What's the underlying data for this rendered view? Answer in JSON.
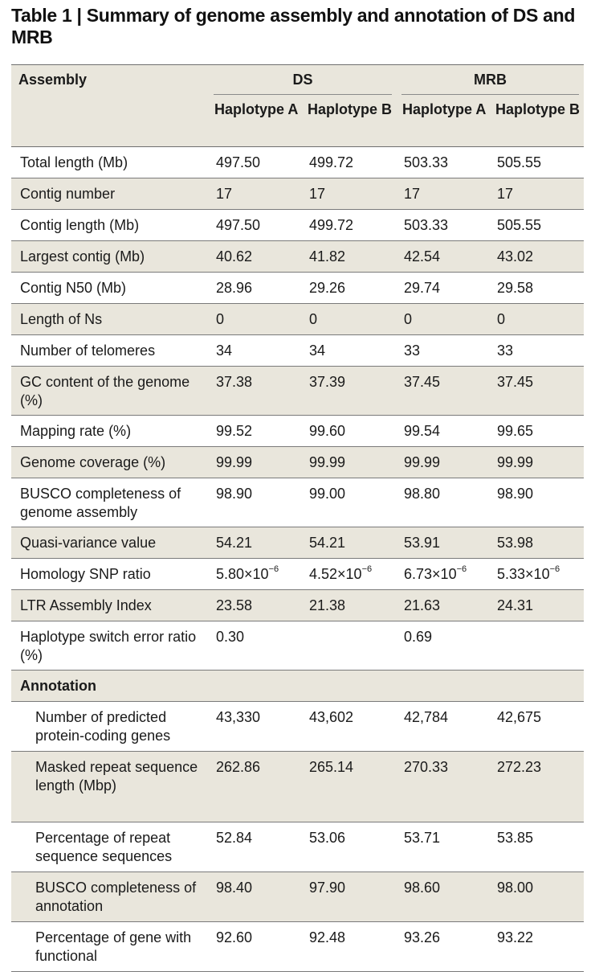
{
  "title": "Table 1 | Summary of genome assembly and annotation of DS and MRB",
  "header": {
    "assembly_label": "Assembly",
    "groups": [
      "DS",
      "MRB"
    ],
    "subheaders": [
      "Haplotype A",
      "Haplotype B",
      "Haplotype A",
      "Haplotype B"
    ]
  },
  "rows": [
    {
      "label": "Total length (Mb)",
      "values": [
        "497.50",
        "499.72",
        "503.33",
        "505.55"
      ]
    },
    {
      "label": "Contig number",
      "values": [
        "17",
        "17",
        "17",
        "17"
      ]
    },
    {
      "label": "Contig length (Mb)",
      "values": [
        "497.50",
        "499.72",
        "503.33",
        "505.55"
      ]
    },
    {
      "label": "Largest contig (Mb)",
      "values": [
        "40.62",
        "41.82",
        "42.54",
        "43.02"
      ]
    },
    {
      "label": "Contig N50 (Mb)",
      "values": [
        "28.96",
        "29.26",
        "29.74",
        "29.58"
      ]
    },
    {
      "label": "Length of Ns",
      "values": [
        "0",
        "0",
        "0",
        "0"
      ]
    },
    {
      "label": "Number of telomeres",
      "values": [
        "34",
        "34",
        "33",
        "33"
      ]
    },
    {
      "label": "GC content of the genome (%)",
      "values": [
        "37.38",
        "37.39",
        "37.45",
        "37.45"
      ]
    },
    {
      "label": "Mapping rate (%)",
      "values": [
        "99.52",
        "99.60",
        "99.54",
        "99.65"
      ]
    },
    {
      "label": "Genome coverage (%)",
      "values": [
        "99.99",
        "99.99",
        "99.99",
        "99.99"
      ]
    },
    {
      "label": "BUSCO completeness of genome assembly",
      "values": [
        "98.90",
        "99.00",
        "98.80",
        "98.90"
      ]
    },
    {
      "label": "Quasi-variance value",
      "values": [
        "54.21",
        "54.21",
        "53.91",
        "53.98"
      ]
    },
    {
      "label": "Homology SNP ratio",
      "values": [
        "5.80×10",
        "4.52×10",
        "6.73×10",
        "5.33×10"
      ],
      "exponent": "−6"
    },
    {
      "label": "LTR Assembly Index",
      "values": [
        "23.58",
        "21.38",
        "21.63",
        "24.31"
      ]
    },
    {
      "label": "Haplotype switch error ratio (%)",
      "values": [
        "0.30",
        "",
        "0.69",
        ""
      ]
    }
  ],
  "annotation_label": "Annotation",
  "annotation_rows": [
    {
      "label": "Number of predicted protein-coding genes",
      "values": [
        "43,330",
        "43,602",
        "42,784",
        "42,675"
      ]
    },
    {
      "label": "Masked repeat sequence length (Mbp)",
      "values": [
        "262.86",
        "265.14",
        "270.33",
        "272.23"
      ]
    },
    {
      "label": "Percentage of repeat sequence sequences",
      "values": [
        "52.84",
        "53.06",
        "53.71",
        "53.85"
      ]
    },
    {
      "label": "BUSCO completeness of annotation",
      "values": [
        "98.40",
        "97.90",
        "98.60",
        "98.00"
      ]
    },
    {
      "label": "Percentage of gene with functional",
      "values": [
        "92.60",
        "92.48",
        "93.26",
        "93.22"
      ]
    }
  ]
}
